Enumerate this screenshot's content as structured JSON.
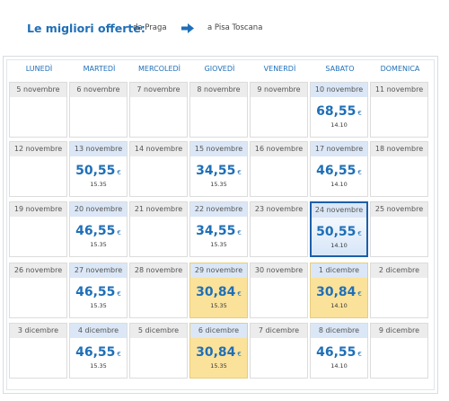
{
  "header": {
    "title": "Le migliori offerte:",
    "from": "da Praga",
    "to": "a Pisa Toscana",
    "arrow_icon": "arrow-right-icon"
  },
  "weekdays": [
    "LUNEDÌ",
    "MARTEDÌ",
    "MERCOLEDÌ",
    "GIOVEDÌ",
    "VENERDÌ",
    "SABATO",
    "DOMENICA"
  ],
  "colors": {
    "accent": "#1f6fb7",
    "cheapest": "#fbe29a",
    "selected_border": "#1d5fa8"
  },
  "weeks": [
    [
      {
        "date": "5 novembre"
      },
      {
        "date": "6 novembre"
      },
      {
        "date": "7 novembre"
      },
      {
        "date": "8 novembre"
      },
      {
        "date": "9 novembre"
      },
      {
        "date": "10 novembre",
        "price": "68,55",
        "currency": "€",
        "time": "14.10"
      },
      {
        "date": "11 novembre"
      }
    ],
    [
      {
        "date": "12 novembre"
      },
      {
        "date": "13 novembre",
        "price": "50,55",
        "currency": "€",
        "time": "15.35"
      },
      {
        "date": "14 novembre"
      },
      {
        "date": "15 novembre",
        "price": "34,55",
        "currency": "€",
        "time": "15.35"
      },
      {
        "date": "16 novembre"
      },
      {
        "date": "17 novembre",
        "price": "46,55",
        "currency": "€",
        "time": "14.10"
      },
      {
        "date": "18 novembre"
      }
    ],
    [
      {
        "date": "19 novembre"
      },
      {
        "date": "20 novembre",
        "price": "46,55",
        "currency": "€",
        "time": "15.35"
      },
      {
        "date": "21 novembre"
      },
      {
        "date": "22 novembre",
        "price": "34,55",
        "currency": "€",
        "time": "15.35"
      },
      {
        "date": "23 novembre"
      },
      {
        "date": "24 novembre",
        "price": "50,55",
        "currency": "€",
        "time": "14.10",
        "selected": true
      },
      {
        "date": "25 novembre"
      }
    ],
    [
      {
        "date": "26 novembre"
      },
      {
        "date": "27 novembre",
        "price": "46,55",
        "currency": "€",
        "time": "15.35"
      },
      {
        "date": "28 novembre"
      },
      {
        "date": "29 novembre",
        "price": "30,84",
        "currency": "€",
        "time": "15.35",
        "cheapest": true
      },
      {
        "date": "30 novembre"
      },
      {
        "date": "1 dicembre",
        "price": "30,84",
        "currency": "€",
        "time": "14.10",
        "cheapest": true
      },
      {
        "date": "2 dicembre"
      }
    ],
    [
      {
        "date": "3 dicembre"
      },
      {
        "date": "4 dicembre",
        "price": "46,55",
        "currency": "€",
        "time": "15.35"
      },
      {
        "date": "5 dicembre"
      },
      {
        "date": "6 dicembre",
        "price": "30,84",
        "currency": "€",
        "time": "15.35",
        "cheapest": true
      },
      {
        "date": "7 dicembre"
      },
      {
        "date": "8 dicembre",
        "price": "46,55",
        "currency": "€",
        "time": "14.10"
      },
      {
        "date": "9 dicembre"
      }
    ]
  ]
}
